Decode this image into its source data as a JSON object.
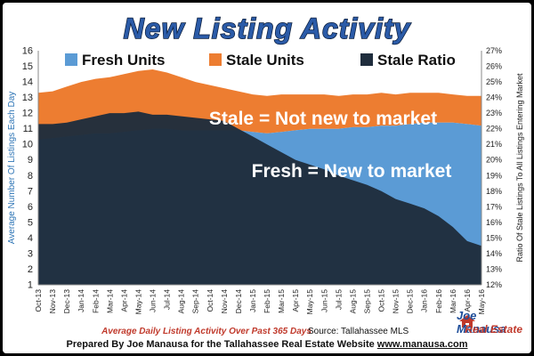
{
  "chart_data": {
    "type": "area",
    "title": "New Listing Activity",
    "ylabel": "Average Number Of Listings Each Day",
    "y2label": "Ratio Of Stale Listings To All Listings Entering Market",
    "ylim": [
      1,
      16
    ],
    "y_ticks": [
      1,
      2,
      3,
      4,
      5,
      6,
      7,
      8,
      9,
      10,
      11,
      12,
      13,
      14,
      15,
      16
    ],
    "y2lim": [
      12,
      27
    ],
    "y2_ticks": [
      "12%",
      "13%",
      "14%",
      "15%",
      "16%",
      "17%",
      "18%",
      "19%",
      "20%",
      "21%",
      "22%",
      "23%",
      "24%",
      "25%",
      "26%",
      "27%"
    ],
    "x_ticks": [
      "Oct-13",
      "Nov-13",
      "Dec-13",
      "Jan-14",
      "Feb-14",
      "Mar-14",
      "Apr-14",
      "May-14",
      "Jun-14",
      "Jul-14",
      "Aug-14",
      "Sep-14",
      "Oct-14",
      "Nov-14",
      "Dec-14",
      "Jan-15",
      "Feb-15",
      "Mar-15",
      "Apr-15",
      "May-15",
      "Jun-15",
      "Jul-15",
      "Aug-15",
      "Sep-15",
      "Oct-15",
      "Nov-15",
      "Dec-15",
      "Jan-16",
      "Feb-16",
      "Mar-16",
      "Apr-16",
      "May-16"
    ],
    "legend_position": "top",
    "grid": false,
    "series": [
      {
        "name": "Fresh Units",
        "color": "#5b9bd5",
        "values": [
          10.3,
          10.4,
          10.5,
          10.6,
          10.7,
          10.7,
          10.8,
          10.9,
          11.0,
          11.0,
          10.9,
          10.9,
          10.9,
          10.9,
          10.9,
          10.8,
          10.7,
          10.8,
          10.9,
          11.0,
          11.0,
          11.0,
          11.1,
          11.1,
          11.2,
          11.2,
          11.3,
          11.4,
          11.4,
          11.4,
          11.3,
          11.2
        ]
      },
      {
        "name": "Stale Units",
        "color": "#ed7d31",
        "values": [
          3.0,
          3.0,
          3.2,
          3.4,
          3.5,
          3.6,
          3.7,
          3.8,
          3.8,
          3.6,
          3.4,
          3.1,
          2.9,
          2.7,
          2.5,
          2.4,
          2.4,
          2.4,
          2.3,
          2.2,
          2.2,
          2.1,
          2.1,
          2.1,
          2.1,
          2.0,
          2.0,
          1.9,
          1.9,
          1.8,
          1.8,
          1.9
        ]
      },
      {
        "name": "Stale Ratio",
        "color": "#1f2d3d",
        "axis": "right",
        "values": [
          22.3,
          22.3,
          22.4,
          22.6,
          22.8,
          23.0,
          23.0,
          23.1,
          22.9,
          22.9,
          22.8,
          22.7,
          22.6,
          22.5,
          22.0,
          21.5,
          21.0,
          20.5,
          20.0,
          19.7,
          19.4,
          19.0,
          18.7,
          18.4,
          18.0,
          17.5,
          17.2,
          16.9,
          16.4,
          15.7,
          14.8,
          14.5
        ]
      }
    ],
    "annotations": [
      "Stale = Not new to market",
      "Fresh = New to market"
    ]
  },
  "footer": {
    "subtitle": "Average Daily Listing Activity Over Past 365 Days",
    "source": "Source: Tallahassee MLS",
    "credit_prefix": "Prepared By Joe Manausa for the Tallahassee Real Estate Website ",
    "credit_url": "www.manausa.com"
  },
  "logo": {
    "line1": "Joe Manausa",
    "line2": "Real Estate"
  }
}
